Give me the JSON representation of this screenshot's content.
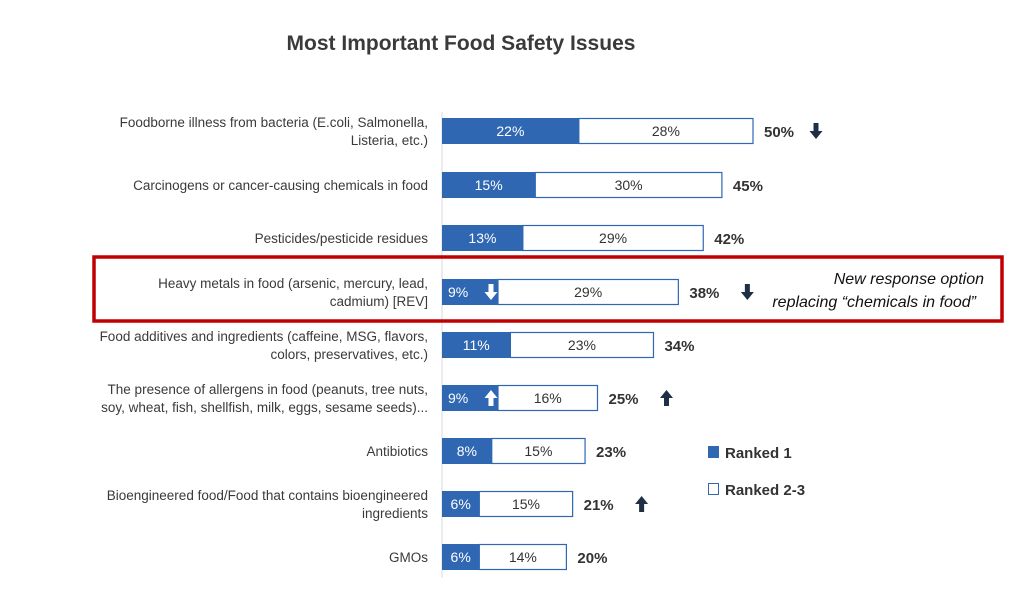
{
  "colors": {
    "ranked1": "#2f67b3",
    "ranked23": "#ffffff",
    "bar_border": "#2f67b3",
    "highlight": "#c00000",
    "arrow": "#1f2f45"
  },
  "chart_data": {
    "type": "bar",
    "orientation": "horizontal",
    "stacked": true,
    "title": "Most Important Food Safety Issues",
    "categories": [
      [
        "Foodborne illness from bacteria (E.coli, Salmonella,",
        "Listeria, etc.)"
      ],
      [
        "Carcinogens or cancer-causing chemicals in food"
      ],
      [
        "Pesticides/pesticide residues"
      ],
      [
        "Heavy metals in food (arsenic, mercury, lead,",
        "cadmium) [REV]"
      ],
      [
        "Food additives and ingredients (caffeine, MSG, flavors,",
        "colors, preservatives, etc.)"
      ],
      [
        "The presence of allergens in food (peanuts, tree nuts,",
        "soy, wheat, fish, shellfish, milk, eggs, sesame seeds)..."
      ],
      [
        "Antibiotics"
      ],
      [
        "Bioengineered food/Food that contains bioengineered",
        "ingredients"
      ],
      [
        "GMOs"
      ]
    ],
    "series": [
      {
        "name": "Ranked 1",
        "values": [
          22,
          15,
          13,
          9,
          11,
          9,
          8,
          6,
          6
        ],
        "trend": [
          null,
          null,
          null,
          "down",
          null,
          "up",
          null,
          null,
          null
        ]
      },
      {
        "name": "Ranked 2-3",
        "values": [
          28,
          30,
          29,
          29,
          23,
          16,
          15,
          15,
          14
        ]
      }
    ],
    "totals": [
      50,
      45,
      42,
      38,
      34,
      25,
      23,
      21,
      20
    ],
    "total_trend": [
      "down",
      null,
      null,
      "down",
      null,
      "up",
      null,
      "up",
      null
    ],
    "value_format": "%",
    "legend_position": "right",
    "grid": false,
    "highlight_index": 3,
    "annotation": [
      "New response option",
      "replacing “chemicals in food”"
    ]
  }
}
